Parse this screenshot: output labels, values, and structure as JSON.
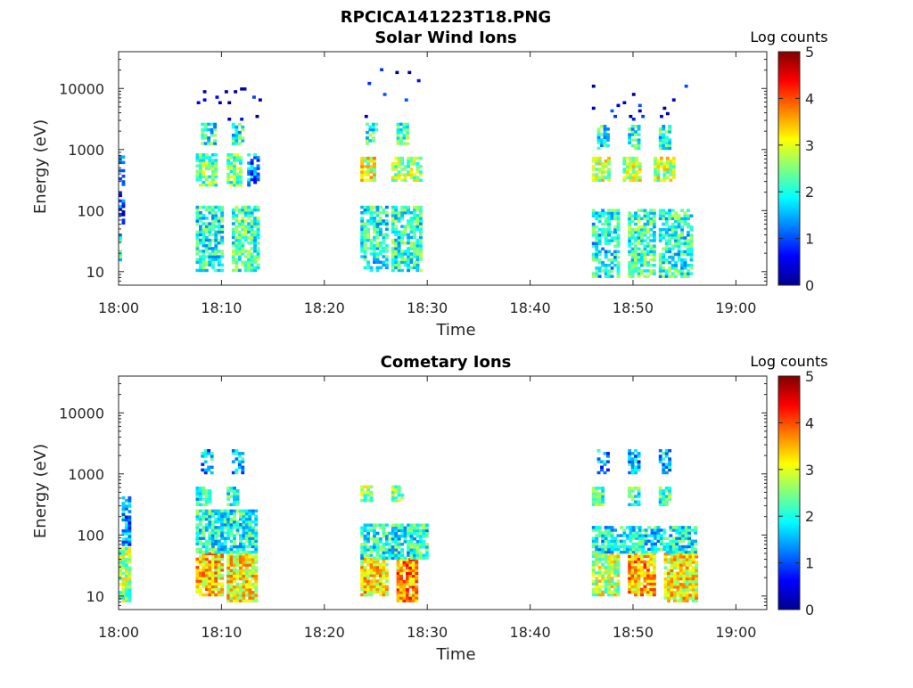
{
  "figure": {
    "title": "RPCICA141223T18.PNG"
  },
  "chart_data": [
    {
      "type": "heatmap",
      "title": "Solar Wind Ions",
      "xlabel": "Time",
      "ylabel": "Energy (eV)",
      "xlim": [
        "18:00",
        "19:03"
      ],
      "x_ticks": [
        "18:00",
        "18:10",
        "18:20",
        "18:30",
        "18:40",
        "18:50",
        "19:00"
      ],
      "y_scale": "log",
      "ylim": [
        6,
        40000
      ],
      "y_ticks": [
        "10",
        "100",
        "1000",
        "10000"
      ],
      "colorbar": {
        "label": "Log counts",
        "range": [
          0,
          5
        ],
        "ticks": [
          "0",
          "1",
          "2",
          "3",
          "4",
          "5"
        ],
        "colormap": "jet"
      },
      "clusters": [
        {
          "t": [
            0.0,
            0.3
          ],
          "e": [
            15,
            40
          ],
          "v": 1.8,
          "d": 0.7
        },
        {
          "t": [
            0.0,
            0.4
          ],
          "e": [
            60,
            800
          ],
          "v": 1.0,
          "d": 0.45
        },
        {
          "t": [
            7.5,
            10.0
          ],
          "e": [
            10,
            120
          ],
          "v": 2.0,
          "d": 0.75
        },
        {
          "t": [
            11.0,
            13.5
          ],
          "e": [
            10,
            120
          ],
          "v": 2.2,
          "d": 0.75
        },
        {
          "t": [
            7.5,
            9.5
          ],
          "e": [
            250,
            800
          ],
          "v": 2.4,
          "d": 0.8
        },
        {
          "t": [
            10.5,
            12.0
          ],
          "e": [
            250,
            800
          ],
          "v": 2.4,
          "d": 0.8
        },
        {
          "t": [
            12.5,
            13.5
          ],
          "e": [
            250,
            800
          ],
          "v": 1.3,
          "d": 0.6
        },
        {
          "t": [
            8.0,
            9.5
          ],
          "e": [
            1200,
            2500
          ],
          "v": 2.0,
          "d": 0.7
        },
        {
          "t": [
            11.0,
            12.0
          ],
          "e": [
            1200,
            2500
          ],
          "v": 2.0,
          "d": 0.7
        },
        {
          "t": [
            23.5,
            26.0
          ],
          "e": [
            10,
            120
          ],
          "v": 2.0,
          "d": 0.7
        },
        {
          "t": [
            26.5,
            29.5
          ],
          "e": [
            10,
            120
          ],
          "v": 2.1,
          "d": 0.75
        },
        {
          "t": [
            23.5,
            25.0
          ],
          "e": [
            300,
            700
          ],
          "v": 3.0,
          "d": 0.85
        },
        {
          "t": [
            26.5,
            29.5
          ],
          "e": [
            300,
            700
          ],
          "v": 2.6,
          "d": 0.75
        },
        {
          "t": [
            24.0,
            25.0
          ],
          "e": [
            1200,
            2500
          ],
          "v": 2.0,
          "d": 0.7
        },
        {
          "t": [
            27.0,
            28.0
          ],
          "e": [
            1200,
            2500
          ],
          "v": 2.0,
          "d": 0.7
        },
        {
          "t": [
            46.0,
            48.5
          ],
          "e": [
            8,
            100
          ],
          "v": 1.9,
          "d": 0.7
        },
        {
          "t": [
            49.5,
            52.0
          ],
          "e": [
            8,
            100
          ],
          "v": 2.2,
          "d": 0.7
        },
        {
          "t": [
            52.5,
            55.5
          ],
          "e": [
            8,
            100
          ],
          "v": 2.0,
          "d": 0.7
        },
        {
          "t": [
            46.0,
            47.5
          ],
          "e": [
            300,
            700
          ],
          "v": 2.8,
          "d": 0.8
        },
        {
          "t": [
            49.0,
            50.5
          ],
          "e": [
            300,
            700
          ],
          "v": 2.8,
          "d": 0.8
        },
        {
          "t": [
            52.0,
            54.0
          ],
          "e": [
            300,
            700
          ],
          "v": 2.8,
          "d": 0.8
        },
        {
          "t": [
            46.5,
            47.5
          ],
          "e": [
            1000,
            2500
          ],
          "v": 2.0,
          "d": 0.7
        },
        {
          "t": [
            49.5,
            50.5
          ],
          "e": [
            1000,
            2500
          ],
          "v": 2.0,
          "d": 0.7
        },
        {
          "t": [
            52.5,
            53.5
          ],
          "e": [
            1000,
            2500
          ],
          "v": 2.0,
          "d": 0.7
        },
        {
          "t": [
            7.0,
            14.0
          ],
          "e": [
            3000,
            10000
          ],
          "v": 0.3,
          "d": 0.04
        },
        {
          "t": [
            23.0,
            30.0
          ],
          "e": [
            3000,
            22000
          ],
          "v": 0.3,
          "d": 0.02
        },
        {
          "t": [
            46.0,
            56.0
          ],
          "e": [
            3000,
            12000
          ],
          "v": 0.3,
          "d": 0.03
        }
      ]
    },
    {
      "type": "heatmap",
      "title": "Cometary Ions",
      "xlabel": "Time",
      "ylabel": "Energy (eV)",
      "xlim": [
        "18:00",
        "19:03"
      ],
      "x_ticks": [
        "18:00",
        "18:10",
        "18:20",
        "18:30",
        "18:40",
        "18:50",
        "19:00"
      ],
      "y_scale": "log",
      "ylim": [
        6,
        40000
      ],
      "y_ticks": [
        "10",
        "100",
        "1000",
        "10000"
      ],
      "colorbar": {
        "label": "Log counts",
        "range": [
          0,
          5
        ],
        "ticks": [
          "0",
          "1",
          "2",
          "3",
          "4",
          "5"
        ],
        "colormap": "jet"
      },
      "clusters": [
        {
          "t": [
            0.0,
            1.0
          ],
          "e": [
            8,
            60
          ],
          "v": 2.6,
          "d": 0.85
        },
        {
          "t": [
            0.3,
            1.2
          ],
          "e": [
            60,
            400
          ],
          "v": 1.5,
          "d": 0.7
        },
        {
          "t": [
            7.5,
            10.0
          ],
          "e": [
            10,
            50
          ],
          "v": 3.3,
          "d": 0.9
        },
        {
          "t": [
            10.5,
            13.5
          ],
          "e": [
            8,
            50
          ],
          "v": 3.1,
          "d": 0.9
        },
        {
          "t": [
            7.5,
            13.5
          ],
          "e": [
            50,
            250
          ],
          "v": 2.0,
          "d": 0.8
        },
        {
          "t": [
            7.5,
            9.0
          ],
          "e": [
            300,
            600
          ],
          "v": 2.0,
          "d": 0.8
        },
        {
          "t": [
            10.5,
            11.5
          ],
          "e": [
            300,
            600
          ],
          "v": 2.0,
          "d": 0.8
        },
        {
          "t": [
            8.0,
            9.0
          ],
          "e": [
            1000,
            2500
          ],
          "v": 1.5,
          "d": 0.5
        },
        {
          "t": [
            11.0,
            12.0
          ],
          "e": [
            1000,
            2500
          ],
          "v": 1.5,
          "d": 0.5
        },
        {
          "t": [
            23.5,
            26.0
          ],
          "e": [
            10,
            40
          ],
          "v": 3.2,
          "d": 0.9
        },
        {
          "t": [
            27.0,
            29.0
          ],
          "e": [
            8,
            40
          ],
          "v": 3.6,
          "d": 0.9
        },
        {
          "t": [
            23.5,
            30.0
          ],
          "e": [
            40,
            150
          ],
          "v": 2.0,
          "d": 0.8
        },
        {
          "t": [
            23.5,
            24.5
          ],
          "e": [
            350,
            600
          ],
          "v": 2.5,
          "d": 0.8
        },
        {
          "t": [
            26.5,
            27.5
          ],
          "e": [
            350,
            600
          ],
          "v": 2.5,
          "d": 0.8
        },
        {
          "t": [
            46.0,
            48.5
          ],
          "e": [
            10,
            50
          ],
          "v": 2.8,
          "d": 0.85
        },
        {
          "t": [
            49.5,
            52.0
          ],
          "e": [
            10,
            50
          ],
          "v": 3.5,
          "d": 0.9
        },
        {
          "t": [
            53.0,
            56.0
          ],
          "e": [
            8,
            50
          ],
          "v": 3.1,
          "d": 0.9
        },
        {
          "t": [
            46.0,
            56.0
          ],
          "e": [
            50,
            130
          ],
          "v": 1.9,
          "d": 0.75
        },
        {
          "t": [
            46.0,
            47.0
          ],
          "e": [
            300,
            600
          ],
          "v": 2.2,
          "d": 0.8
        },
        {
          "t": [
            49.5,
            50.5
          ],
          "e": [
            300,
            600
          ],
          "v": 2.2,
          "d": 0.8
        },
        {
          "t": [
            52.5,
            53.5
          ],
          "e": [
            300,
            600
          ],
          "v": 2.2,
          "d": 0.8
        },
        {
          "t": [
            46.5,
            47.5
          ],
          "e": [
            1000,
            2500
          ],
          "v": 1.5,
          "d": 0.5
        },
        {
          "t": [
            49.5,
            50.5
          ],
          "e": [
            1000,
            2500
          ],
          "v": 1.5,
          "d": 0.5
        },
        {
          "t": [
            52.5,
            53.5
          ],
          "e": [
            1000,
            2500
          ],
          "v": 1.5,
          "d": 0.5
        }
      ]
    }
  ]
}
